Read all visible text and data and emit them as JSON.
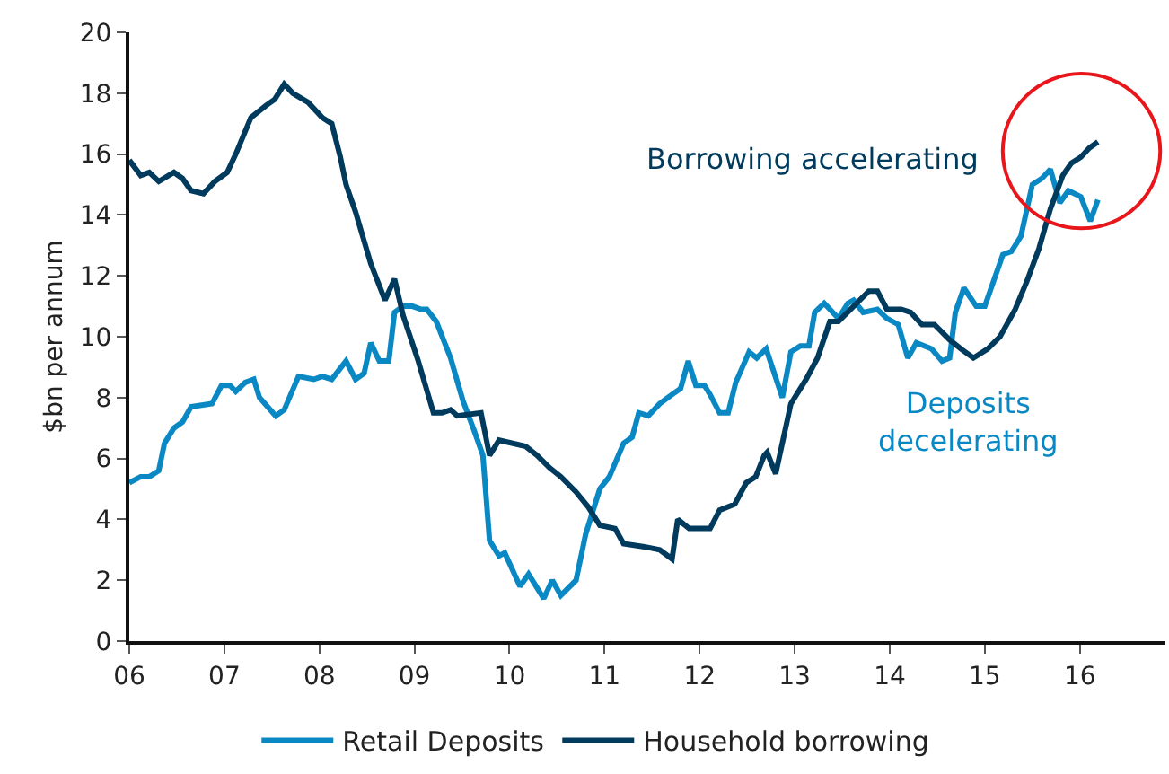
{
  "chart_data": {
    "type": "line",
    "ylabel": "$bn per annum",
    "xlim": [
      6,
      16.9
    ],
    "xticks": [
      {
        "value": 6,
        "label": "06"
      },
      {
        "value": 7,
        "label": "07"
      },
      {
        "value": 8,
        "label": "08"
      },
      {
        "value": 9,
        "label": "09"
      },
      {
        "value": 10,
        "label": "10"
      },
      {
        "value": 11,
        "label": "11"
      },
      {
        "value": 12,
        "label": "12"
      },
      {
        "value": 13,
        "label": "13"
      },
      {
        "value": 14,
        "label": "14"
      },
      {
        "value": 15,
        "label": "15"
      },
      {
        "value": 16,
        "label": "16"
      }
    ],
    "ylim": [
      0,
      20
    ],
    "yticks": [
      0,
      2,
      4,
      6,
      8,
      10,
      12,
      14,
      16,
      18,
      20
    ],
    "legend": "bottom",
    "marker": "none",
    "line_style": "solid",
    "annotations": [
      "Borrowing accelerating",
      "Deposits\ndecelerating"
    ],
    "series": [
      {
        "name": "Retail Deposits",
        "color": "#0a88c4",
        "x": [
          6.0,
          6.12,
          6.21,
          6.31,
          6.37,
          6.47,
          6.56,
          6.65,
          6.87,
          6.97,
          7.06,
          7.12,
          7.22,
          7.31,
          7.37,
          7.54,
          7.63,
          7.78,
          7.94,
          8.03,
          8.13,
          8.28,
          8.38,
          8.47,
          8.54,
          8.63,
          8.73,
          8.79,
          8.88,
          8.98,
          9.07,
          9.13,
          9.23,
          9.38,
          9.51,
          9.63,
          9.72,
          9.79,
          9.89,
          9.95,
          10.11,
          10.2,
          10.36,
          10.45,
          10.54,
          10.7,
          10.8,
          10.95,
          11.05,
          11.2,
          11.29,
          11.36,
          11.46,
          11.58,
          11.71,
          11.8,
          11.88,
          11.96,
          12.05,
          12.11,
          12.21,
          12.3,
          12.38,
          12.52,
          12.6,
          12.7,
          12.87,
          12.96,
          13.06,
          13.15,
          13.21,
          13.31,
          13.46,
          13.56,
          13.62,
          13.72,
          13.87,
          13.97,
          14.09,
          14.19,
          14.28,
          14.44,
          14.55,
          14.63,
          14.69,
          14.78,
          14.91,
          15.0,
          15.19,
          15.28,
          15.38,
          15.5,
          15.6,
          15.69,
          15.79,
          15.88,
          16.01,
          16.11,
          16.19
        ],
        "values": [
          5.2,
          5.4,
          5.4,
          5.6,
          6.5,
          7.0,
          7.2,
          7.7,
          7.8,
          8.4,
          8.4,
          8.2,
          8.5,
          8.6,
          8.0,
          7.4,
          7.6,
          8.7,
          8.6,
          8.7,
          8.6,
          9.2,
          8.6,
          8.8,
          9.8,
          9.2,
          9.2,
          10.8,
          11.0,
          11.0,
          10.9,
          10.9,
          10.5,
          9.3,
          7.9,
          6.9,
          6.1,
          3.3,
          2.8,
          2.9,
          1.8,
          2.2,
          1.4,
          2.0,
          1.5,
          2.0,
          3.5,
          5.0,
          5.4,
          6.5,
          6.7,
          7.5,
          7.4,
          7.8,
          8.1,
          8.3,
          9.2,
          8.4,
          8.4,
          8.1,
          7.5,
          7.5,
          8.5,
          9.5,
          9.3,
          9.6,
          8.0,
          9.5,
          9.7,
          9.7,
          10.8,
          11.1,
          10.6,
          11.1,
          11.2,
          10.8,
          10.9,
          10.6,
          10.4,
          9.3,
          9.8,
          9.6,
          9.2,
          9.3,
          10.8,
          11.6,
          11.0,
          11.0,
          12.7,
          12.8,
          13.3,
          15.0,
          15.2,
          15.5,
          14.4,
          14.8,
          14.6,
          13.8,
          14.5
        ]
      },
      {
        "name": "Household borrowing",
        "color": "#003a5c",
        "x": [
          6.0,
          6.12,
          6.21,
          6.31,
          6.47,
          6.56,
          6.65,
          6.78,
          6.9,
          7.03,
          7.12,
          7.28,
          7.44,
          7.53,
          7.63,
          7.72,
          7.88,
          8.03,
          8.13,
          8.22,
          8.28,
          8.38,
          8.54,
          8.69,
          8.79,
          8.88,
          9.04,
          9.2,
          9.29,
          9.38,
          9.45,
          9.7,
          9.79,
          9.89,
          10.17,
          10.29,
          10.42,
          10.54,
          10.7,
          10.83,
          10.95,
          11.11,
          11.2,
          11.42,
          11.58,
          11.71,
          11.77,
          11.89,
          12.11,
          12.21,
          12.37,
          12.49,
          12.59,
          12.68,
          12.71,
          12.8,
          12.96,
          13.12,
          13.24,
          13.37,
          13.46,
          13.62,
          13.78,
          13.87,
          13.97,
          14.12,
          14.22,
          14.34,
          14.47,
          14.63,
          14.75,
          14.88,
          15.03,
          15.16,
          15.32,
          15.44,
          15.57,
          15.69,
          15.82,
          15.91,
          16.01,
          16.1,
          16.19
        ],
        "values": [
          15.8,
          15.3,
          15.4,
          15.1,
          15.4,
          15.2,
          14.8,
          14.7,
          15.1,
          15.4,
          16.0,
          17.2,
          17.6,
          17.8,
          18.3,
          18.0,
          17.7,
          17.2,
          17.0,
          15.9,
          15.0,
          14.1,
          12.4,
          11.2,
          11.9,
          10.7,
          9.2,
          7.5,
          7.5,
          7.6,
          7.4,
          7.5,
          6.1,
          6.6,
          6.4,
          6.1,
          5.7,
          5.4,
          4.9,
          4.4,
          3.8,
          3.7,
          3.2,
          3.1,
          3.0,
          2.7,
          4.0,
          3.7,
          3.7,
          4.3,
          4.5,
          5.2,
          5.4,
          6.1,
          6.2,
          5.5,
          7.8,
          8.6,
          9.3,
          10.5,
          10.5,
          11.0,
          11.5,
          11.5,
          10.9,
          10.9,
          10.8,
          10.4,
          10.4,
          9.9,
          9.6,
          9.3,
          9.6,
          10.0,
          10.9,
          11.8,
          12.9,
          14.2,
          15.3,
          15.7,
          15.9,
          16.2,
          16.4
        ]
      }
    ]
  }
}
